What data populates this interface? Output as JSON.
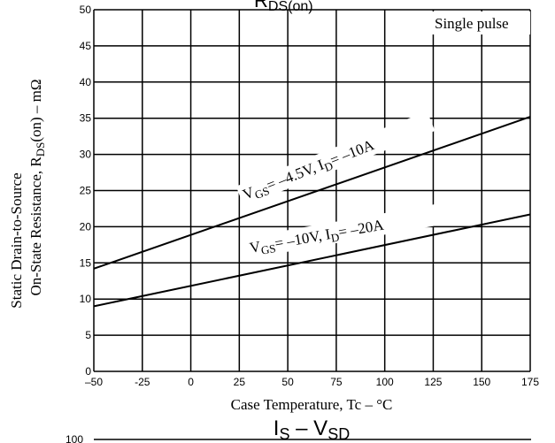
{
  "chart_data": {
    "type": "line",
    "title_fragment": "DS(on)",
    "title_fragment_prefix": "R",
    "xlabel": "Case Temperature, Tc  –  °C",
    "ylabel_line1": "Static Drain-to-Source",
    "ylabel_line2_pre": "On-State Resistance, R",
    "ylabel_line2_sub": "DS",
    "ylabel_line2_post": "(on)  –  mΩ",
    "xlim": [
      -50,
      175
    ],
    "ylim": [
      0,
      50
    ],
    "x_ticks": [
      -50,
      -25,
      0,
      25,
      50,
      75,
      100,
      125,
      150,
      175
    ],
    "x_tick_labels": [
      "–50",
      "-25",
      "0",
      "25",
      "50",
      "75",
      "100",
      "125",
      "150",
      "175"
    ],
    "y_ticks": [
      0,
      5,
      10,
      15,
      20,
      25,
      30,
      35,
      40,
      45,
      50
    ],
    "y_tick_labels": [
      "0",
      "5",
      "10",
      "15",
      "20",
      "25",
      "30",
      "35",
      "40",
      "45",
      "50"
    ],
    "grid": true,
    "annotation": "Single pulse",
    "series": [
      {
        "label_parts": [
          "V",
          "GS",
          "= –4.5V, I",
          "D",
          "= –10A"
        ],
        "x": [
          -50,
          175
        ],
        "y": [
          14.2,
          35.2
        ]
      },
      {
        "label_parts": [
          "V",
          "GS",
          "= –10V, I",
          "D",
          "= –20A"
        ],
        "x": [
          -50,
          175
        ],
        "y": [
          9.0,
          21.7
        ]
      }
    ],
    "next_chart_title": {
      "main": "I",
      "sub1": "S",
      "mid": "  –  V",
      "sub2": "SD"
    },
    "next_chart_top_tick": "100"
  }
}
